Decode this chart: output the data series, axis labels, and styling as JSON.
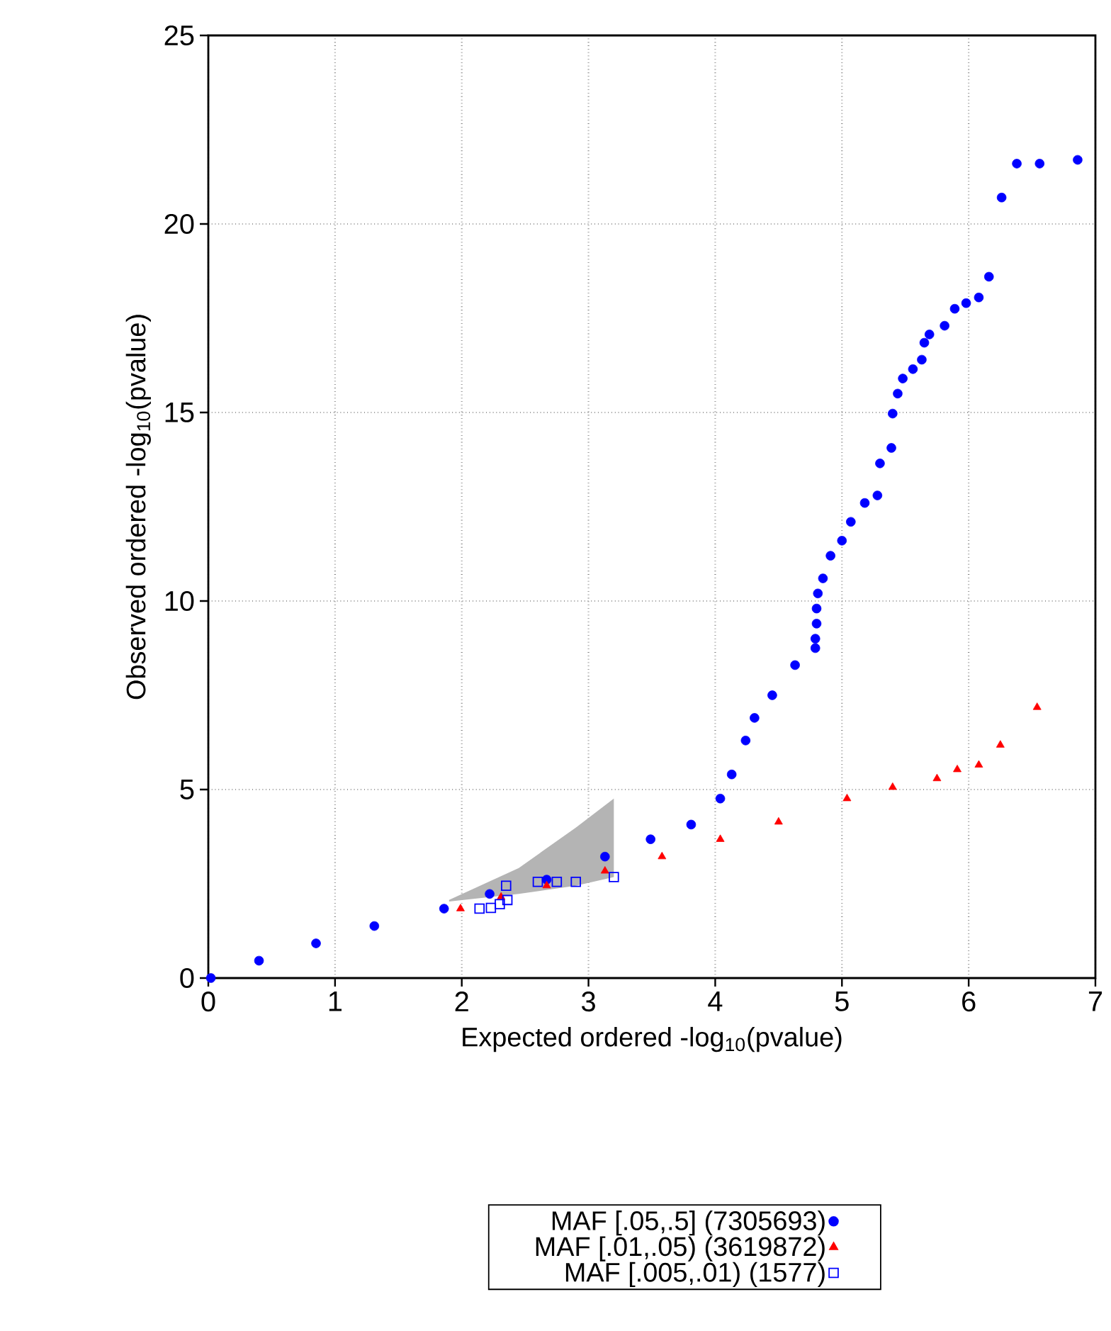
{
  "chart_data": {
    "type": "scatter",
    "xlabel": "Expected ordered -log$_{10}$(pvalue)",
    "ylabel": "Observed ordered -log$_{10}$(pvalue)",
    "xlim": [
      0,
      7
    ],
    "ylim": [
      0,
      25
    ],
    "xticks": [
      0,
      1,
      2,
      3,
      4,
      5,
      6,
      7
    ],
    "yticks": [
      0,
      5,
      10,
      15,
      20,
      25
    ],
    "grid": true,
    "legend": "bottom",
    "series": [
      {
        "type": "line",
        "color": "#b4b4b4",
        "x": [
          1.9,
          2.45,
          2.9,
          3.2
        ],
        "values": [
          null,
          null,
          null,
          null
        ],
        "upper": [
          2.07,
          2.92,
          3.99,
          4.76
        ],
        "lower": [
          2.03,
          2.23,
          2.45,
          2.68
        ]
      },
      {
        "name": "MAF [.05,.5] (7305693)",
        "color": "#0000ff",
        "marker": "circle",
        "x": [
          0.02,
          0.4,
          0.85,
          1.31,
          1.86,
          2.22,
          2.67,
          3.13,
          3.49,
          3.81,
          4.04,
          4.13,
          4.24,
          4.31,
          4.45,
          4.63,
          4.79,
          4.79,
          4.8,
          4.8,
          4.81,
          4.85,
          4.91,
          5.0,
          5.07,
          5.18,
          5.28,
          5.3,
          5.39,
          5.4,
          5.44,
          5.48,
          5.56,
          5.63,
          5.65,
          5.69,
          5.81,
          5.89,
          5.98,
          6.08,
          6.16,
          6.26,
          6.38,
          6.56,
          6.86
        ],
        "values": [
          0.0,
          0.46,
          0.92,
          1.38,
          1.84,
          2.23,
          2.61,
          3.22,
          3.68,
          4.07,
          4.76,
          5.4,
          6.3,
          6.9,
          7.5,
          8.3,
          8.75,
          9.0,
          9.4,
          9.8,
          10.2,
          10.6,
          11.2,
          11.6,
          12.1,
          12.6,
          12.8,
          13.65,
          14.06,
          14.97,
          15.5,
          15.9,
          16.15,
          16.4,
          16.85,
          17.07,
          17.3,
          17.75,
          17.9,
          18.05,
          18.6,
          20.7,
          21.6,
          21.6,
          21.7
        ]
      },
      {
        "name": "MAF [.01,.05) (3619872)",
        "color": "#ff0000",
        "marker": "triangle",
        "x": [
          1.99,
          2.31,
          2.67,
          3.13,
          3.58,
          4.04,
          4.5,
          5.04,
          5.4,
          5.75,
          5.91,
          6.08,
          6.25,
          6.54
        ],
        "values": [
          1.84,
          2.15,
          2.45,
          2.84,
          3.22,
          3.68,
          4.14,
          4.76,
          5.06,
          5.29,
          5.53,
          5.65,
          6.18,
          7.18
        ]
      },
      {
        "name": "MAF [.005,.01) (1577)",
        "color": "#0000ff",
        "marker": "square",
        "x": [
          2.14,
          2.23,
          2.3,
          2.36,
          2.35,
          2.6,
          2.75,
          2.9,
          3.2
        ],
        "values": [
          1.84,
          1.86,
          1.96,
          2.07,
          2.45,
          2.55,
          2.55,
          2.55,
          2.68
        ]
      }
    ]
  }
}
